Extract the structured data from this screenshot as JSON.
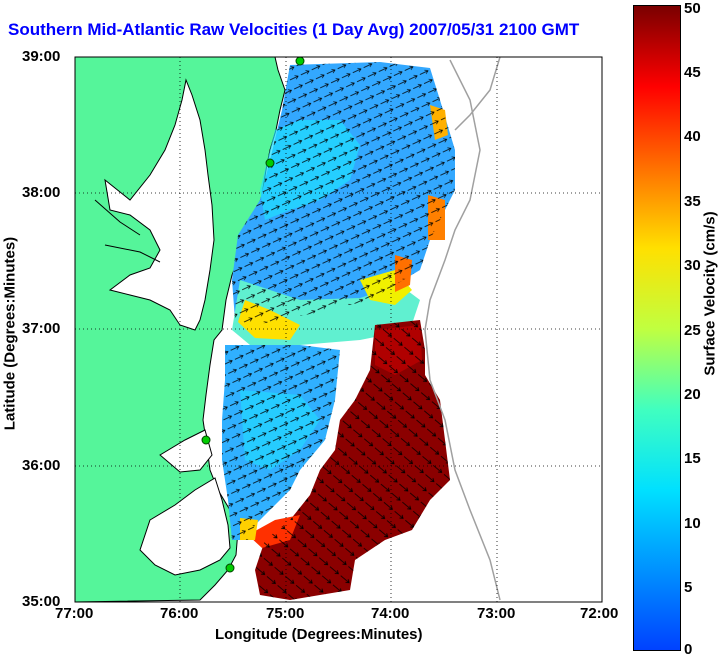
{
  "title": "Southern Mid-Atlantic Raw Velocities (1 Day Avg) 2007/05/31 2100 GMT",
  "map": {
    "xlabel": "Longitude (Degrees:Minutes)",
    "ylabel": "Latitude (Degrees:Minutes)",
    "x_ticks": [
      "77:00",
      "76:00",
      "75:00",
      "74:00",
      "73:00",
      "72:00"
    ],
    "y_ticks": [
      "39:00",
      "38:00",
      "37:00",
      "36:00",
      "35:00"
    ],
    "lon_range": [
      -77,
      -72
    ],
    "lat_range": [
      35,
      39
    ],
    "land_color": "#55f59a",
    "coast_color": "#000000",
    "grid": "dotted"
  },
  "colorbar": {
    "label": "Surface Velocity (cm/s)",
    "ticks": [
      "0",
      "5",
      "10",
      "15",
      "20",
      "25",
      "30",
      "35",
      "40",
      "45",
      "50"
    ],
    "range": [
      0,
      50
    ],
    "colormap": "jet"
  },
  "stations": [
    {
      "lon": -74.75,
      "lat": 39.0
    },
    {
      "lon": -75.1,
      "lat": 38.2
    },
    {
      "lon": -75.65,
      "lat": 36.2
    },
    {
      "lon": -75.5,
      "lat": 35.25
    }
  ]
}
